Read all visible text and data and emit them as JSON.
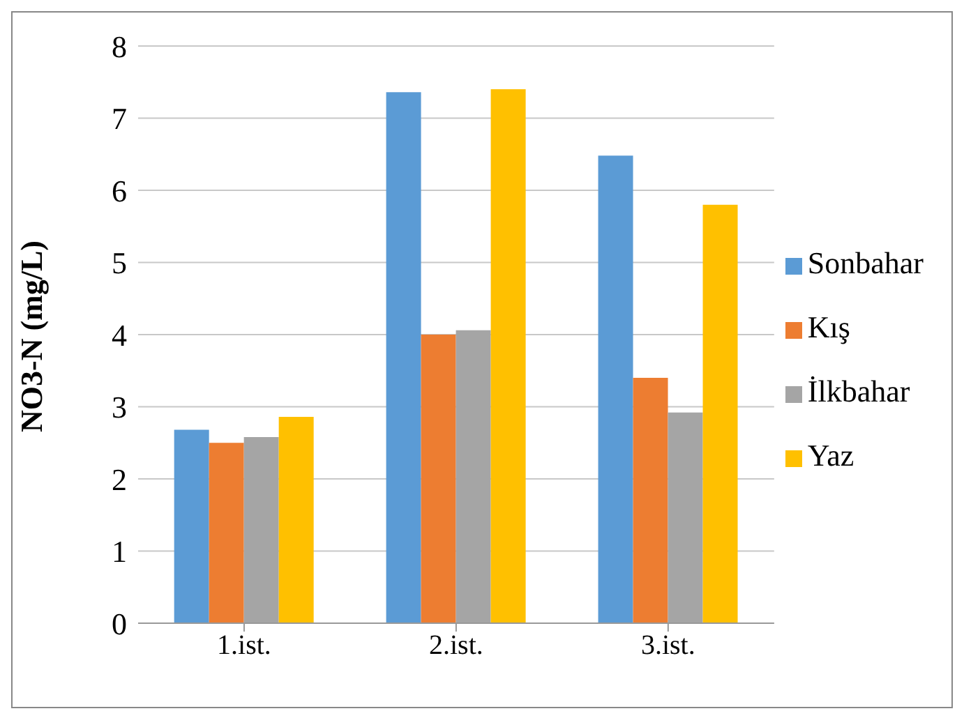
{
  "chart_data": {
    "type": "bar",
    "ylabel": "NO3-N  (mg/L)",
    "categories": [
      "1.ist.",
      "2.ist.",
      "3.ist."
    ],
    "series": [
      {
        "name": "Sonbahar",
        "color": "#5b9bd5",
        "values": [
          2.68,
          7.36,
          6.48
        ]
      },
      {
        "name": "Kış",
        "color": "#ed7d31",
        "values": [
          2.5,
          4.0,
          3.4
        ]
      },
      {
        "name": "İlkbahar",
        "color": "#a5a5a5",
        "values": [
          2.58,
          4.06,
          2.92
        ]
      },
      {
        "name": "Yaz",
        "color": "#ffc000",
        "values": [
          2.86,
          7.4,
          5.8
        ]
      }
    ],
    "ylim": [
      0,
      8
    ],
    "yticks": [
      0,
      1,
      2,
      3,
      4,
      5,
      6,
      7,
      8
    ],
    "grid": "y",
    "legend": "right"
  }
}
